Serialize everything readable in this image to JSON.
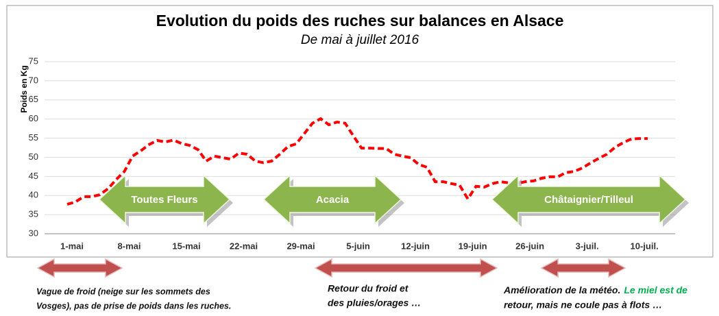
{
  "chart_data": {
    "type": "line",
    "title": "Evolution du poids des ruches sur balances en Alsace",
    "subtitle": "De mai à juillet 2016",
    "ylabel": "Poids en Kg",
    "categories": [
      "1-mai",
      null,
      null,
      null,
      null,
      null,
      null,
      "8-mai",
      null,
      null,
      null,
      null,
      null,
      null,
      "15-mai",
      null,
      null,
      null,
      null,
      null,
      null,
      "22-mai",
      null,
      null,
      null,
      null,
      null,
      null,
      "29-mai",
      null,
      null,
      null,
      null,
      null,
      null,
      "5-juin",
      null,
      null,
      null,
      null,
      null,
      null,
      "12-juin",
      null,
      null,
      null,
      null,
      null,
      null,
      "19-juin",
      null,
      null,
      null,
      null,
      null,
      null,
      "26-juin",
      null,
      null,
      null,
      null,
      null,
      null,
      "3-juil.",
      null,
      null,
      null,
      null,
      null,
      null,
      "10-juil.",
      null
    ],
    "series": [
      {
        "name": "Poids",
        "color": "#ff0000",
        "values": [
          37.7,
          38.3,
          39.7,
          39.7,
          40.2,
          41.8,
          44.2,
          46.3,
          50.3,
          51.7,
          53.3,
          54.4,
          54,
          54.5,
          53.6,
          53.1,
          52,
          49,
          50.3,
          49.9,
          49.5,
          51.1,
          50.8,
          49,
          48.6,
          49,
          50.8,
          52.8,
          53.5,
          56.2,
          58.9,
          60.1,
          58.5,
          59.2,
          58.9,
          55.6,
          52.4,
          52.4,
          52.3,
          52.3,
          50.8,
          50.3,
          49.9,
          48.1,
          47.4,
          43.6,
          43.6,
          43.1,
          42.7,
          39.1,
          42.4,
          42.2,
          43.1,
          43.6,
          43.3,
          43.1,
          43.6,
          43.8,
          44.5,
          44.9,
          44.9,
          46,
          46.3,
          47.2,
          48.5,
          49.7,
          50.8,
          52.6,
          53.8,
          54.8,
          54.9,
          54.9
        ]
      }
    ],
    "ylim": [
      30,
      75
    ],
    "yticks": [
      30,
      35,
      40,
      45,
      50,
      55,
      60,
      65,
      70,
      75
    ],
    "grid": true,
    "periods": [
      "Toutes Fleurs",
      "Acacia",
      "Châtaignier/Tilleul"
    ],
    "notes": [
      [
        "Vague de froid (neige sur les sommets des",
        "Vosges), pas de  prise de poids dans les ruches."
      ],
      [
        "Retour du froid et",
        "des pluies/orages …"
      ],
      [
        "Amélioration de la météo.",
        "Le miel est de",
        "retour, mais ne coule pas à flots …"
      ]
    ]
  }
}
